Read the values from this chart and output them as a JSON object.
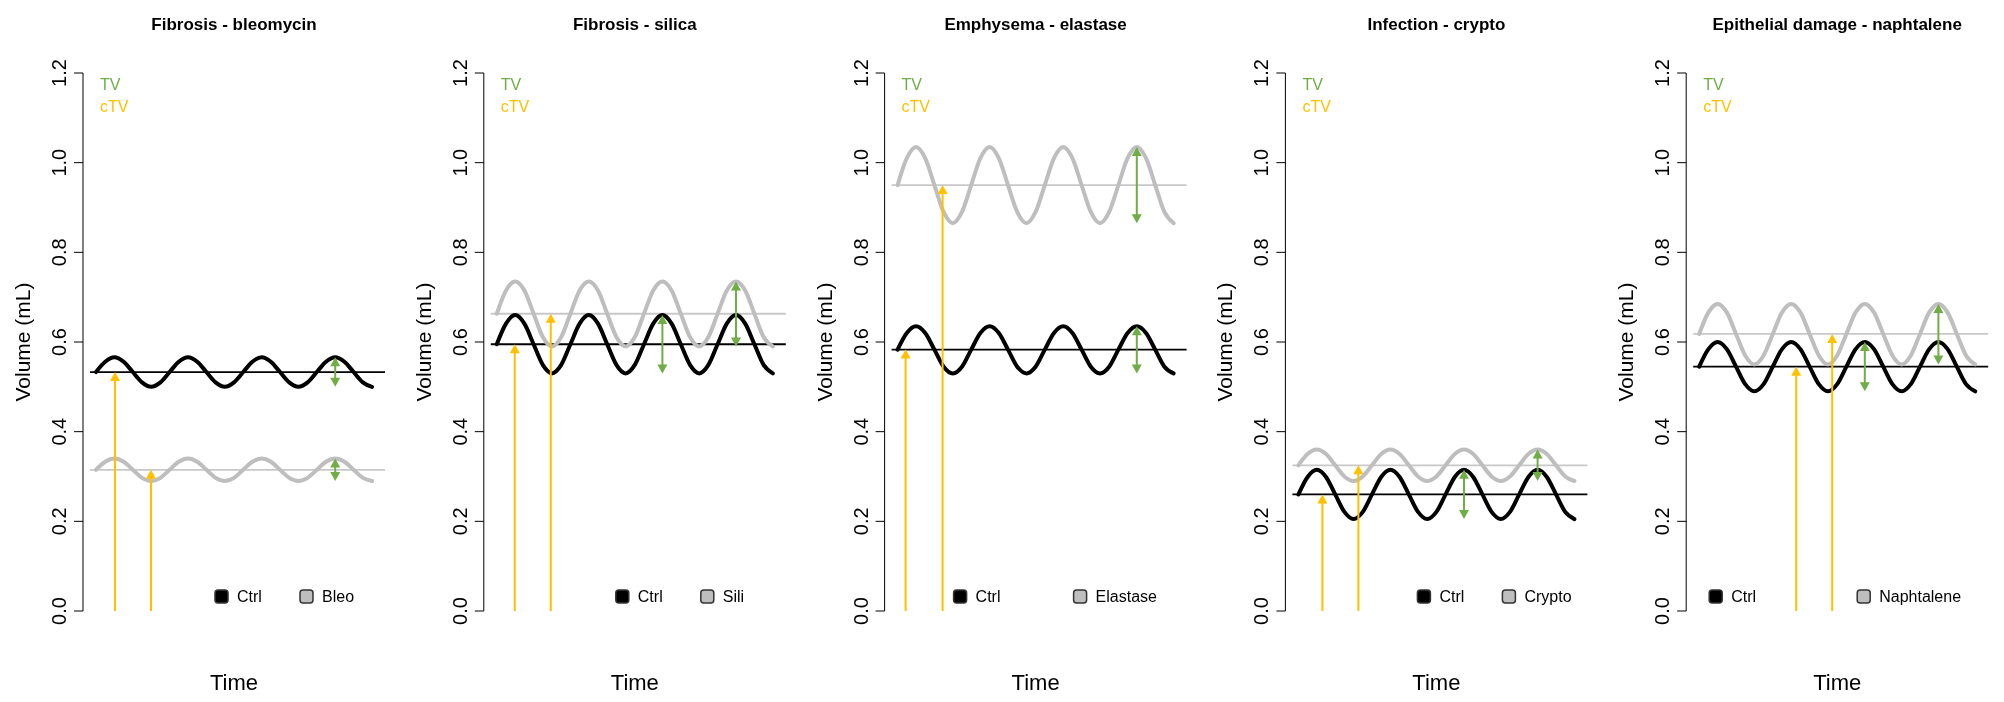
{
  "chart_data": [
    {
      "type": "line",
      "title": "Fibrosis - bleomycin",
      "xlabel": "Time",
      "ylabel": "Volume (mL)",
      "annotations": [
        "TV",
        "cTV"
      ],
      "legend": "bottom right",
      "tick_labels": "y",
      "ylim": [
        0,
        1.2
      ],
      "yticks": [
        {
          "value": 0,
          "label": "0.0"
        },
        {
          "value": 0.2,
          "label": "0.2"
        },
        {
          "value": 0.4,
          "label": "0.4"
        },
        {
          "value": 0.6,
          "label": "0.6"
        },
        {
          "value": 0.8,
          "label": "0.8"
        },
        {
          "value": 1,
          "label": "1.0"
        },
        {
          "value": 1.2,
          "label": "1.2"
        }
      ],
      "categories": [
        null,
        null,
        null,
        null,
        null,
        null,
        null,
        null,
        null,
        null,
        null,
        null,
        null,
        null,
        null,
        null,
        null,
        null,
        null,
        null,
        null,
        null,
        null,
        null,
        null,
        null,
        null,
        null,
        null,
        null,
        null
      ],
      "ref_lines": [
        {
          "axis": "y",
          "value": 0.533,
          "color": "#000000"
        },
        {
          "axis": "y",
          "value": 0.315,
          "color": "#c8c8c8"
        }
      ],
      "series": [
        {
          "name": "Ctrl",
          "color": "#000000",
          "values": [
            0.533,
            0.556,
            0.566,
            0.556,
            0.533,
            0.51,
            0.5,
            0.51,
            0.533,
            0.556,
            0.566,
            0.556,
            0.533,
            0.51,
            0.5,
            0.51,
            0.533,
            0.556,
            0.566,
            0.556,
            0.533,
            0.51,
            0.5,
            0.51,
            0.533,
            0.556,
            0.566,
            0.556,
            0.533,
            0.51,
            0.5
          ]
        },
        {
          "name": "Bleo",
          "color": "#bebebe",
          "values": [
            0.315,
            0.333,
            0.34,
            0.333,
            0.315,
            0.297,
            0.29,
            0.297,
            0.315,
            0.333,
            0.34,
            0.333,
            0.315,
            0.297,
            0.29,
            0.297,
            0.315,
            0.333,
            0.34,
            0.333,
            0.315,
            0.297,
            0.29,
            0.297,
            0.315,
            0.333,
            0.34,
            0.333,
            0.315,
            0.297,
            0.29
          ]
        }
      ]
    },
    {
      "type": "line",
      "title": "Fibrosis - silica",
      "xlabel": "Time",
      "ylabel": "Volume (mL)",
      "annotations": [
        "TV",
        "cTV"
      ],
      "legend": "bottom right",
      "tick_labels": "y",
      "ylim": [
        0,
        1.2
      ],
      "yticks": [
        {
          "value": 0,
          "label": "0.0"
        },
        {
          "value": 0.2,
          "label": "0.2"
        },
        {
          "value": 0.4,
          "label": "0.4"
        },
        {
          "value": 0.6,
          "label": "0.6"
        },
        {
          "value": 0.8,
          "label": "0.8"
        },
        {
          "value": 1,
          "label": "1.0"
        },
        {
          "value": 1.2,
          "label": "1.2"
        }
      ],
      "categories": [
        null,
        null,
        null,
        null,
        null,
        null,
        null,
        null,
        null,
        null,
        null,
        null,
        null,
        null,
        null,
        null,
        null,
        null,
        null,
        null,
        null,
        null,
        null,
        null,
        null,
        null,
        null,
        null,
        null,
        null,
        null
      ],
      "ref_lines": [
        {
          "axis": "y",
          "value": 0.595,
          "color": "#000000"
        },
        {
          "axis": "y",
          "value": 0.663,
          "color": "#c8c8c8"
        }
      ],
      "series": [
        {
          "name": "Ctrl",
          "color": "#000000",
          "values": [
            0.595,
            0.641,
            0.66,
            0.641,
            0.595,
            0.549,
            0.53,
            0.549,
            0.595,
            0.641,
            0.66,
            0.641,
            0.595,
            0.549,
            0.53,
            0.549,
            0.595,
            0.641,
            0.66,
            0.641,
            0.595,
            0.549,
            0.53,
            0.549,
            0.595,
            0.641,
            0.66,
            0.641,
            0.595,
            0.549,
            0.53
          ]
        },
        {
          "name": "Sili",
          "color": "#bebebe",
          "values": [
            0.663,
            0.715,
            0.735,
            0.715,
            0.663,
            0.611,
            0.59,
            0.611,
            0.663,
            0.715,
            0.735,
            0.715,
            0.663,
            0.611,
            0.59,
            0.611,
            0.663,
            0.715,
            0.735,
            0.715,
            0.663,
            0.611,
            0.59,
            0.611,
            0.663,
            0.715,
            0.735,
            0.715,
            0.663,
            0.611,
            0.59
          ]
        }
      ]
    },
    {
      "type": "line",
      "title": "Emphysema - elastase",
      "xlabel": "Time",
      "ylabel": "Volume (mL)",
      "annotations": [
        "TV",
        "cTV"
      ],
      "legend": "bottom",
      "tick_labels": "y",
      "ylim": [
        0,
        1.2
      ],
      "yticks": [
        {
          "value": 0,
          "label": "0.0"
        },
        {
          "value": 0.2,
          "label": "0.2"
        },
        {
          "value": 0.4,
          "label": "0.4"
        },
        {
          "value": 0.6,
          "label": "0.6"
        },
        {
          "value": 0.8,
          "label": "0.8"
        },
        {
          "value": 1,
          "label": "1.0"
        },
        {
          "value": 1.2,
          "label": "1.2"
        }
      ],
      "categories": [
        null,
        null,
        null,
        null,
        null,
        null,
        null,
        null,
        null,
        null,
        null,
        null,
        null,
        null,
        null,
        null,
        null,
        null,
        null,
        null,
        null,
        null,
        null,
        null,
        null,
        null,
        null,
        null,
        null,
        null,
        null
      ],
      "ref_lines": [
        {
          "axis": "y",
          "value": 0.583,
          "color": "#000000"
        },
        {
          "axis": "y",
          "value": 0.95,
          "color": "#c8c8c8"
        }
      ],
      "series": [
        {
          "name": "Ctrl",
          "color": "#000000",
          "values": [
            0.583,
            0.62,
            0.635,
            0.62,
            0.583,
            0.545,
            0.53,
            0.545,
            0.583,
            0.62,
            0.635,
            0.62,
            0.583,
            0.545,
            0.53,
            0.545,
            0.583,
            0.62,
            0.635,
            0.62,
            0.583,
            0.545,
            0.53,
            0.545,
            0.583,
            0.62,
            0.635,
            0.62,
            0.583,
            0.545,
            0.53
          ]
        },
        {
          "name": "Elastase",
          "color": "#bebebe",
          "values": [
            0.95,
            1.01,
            1.035,
            1.01,
            0.95,
            0.89,
            0.865,
            0.89,
            0.95,
            1.01,
            1.035,
            1.01,
            0.95,
            0.89,
            0.865,
            0.89,
            0.95,
            1.01,
            1.035,
            1.01,
            0.95,
            0.89,
            0.865,
            0.89,
            0.95,
            1.01,
            1.035,
            1.01,
            0.95,
            0.89,
            0.865
          ]
        }
      ]
    },
    {
      "type": "line",
      "title": "Infection - crypto",
      "xlabel": "Time",
      "ylabel": "Volume (mL)",
      "annotations": [
        "TV",
        "cTV"
      ],
      "legend": "bottom right",
      "tick_labels": "y",
      "ylim": [
        0,
        1.2
      ],
      "yticks": [
        {
          "value": 0,
          "label": "0.0"
        },
        {
          "value": 0.2,
          "label": "0.2"
        },
        {
          "value": 0.4,
          "label": "0.4"
        },
        {
          "value": 0.6,
          "label": "0.6"
        },
        {
          "value": 0.8,
          "label": "0.8"
        },
        {
          "value": 1,
          "label": "1.0"
        },
        {
          "value": 1.2,
          "label": "1.2"
        }
      ],
      "categories": [
        null,
        null,
        null,
        null,
        null,
        null,
        null,
        null,
        null,
        null,
        null,
        null,
        null,
        null,
        null,
        null,
        null,
        null,
        null,
        null,
        null,
        null,
        null,
        null,
        null,
        null,
        null,
        null,
        null,
        null,
        null
      ],
      "ref_lines": [
        {
          "axis": "y",
          "value": 0.26,
          "color": "#000000"
        },
        {
          "axis": "y",
          "value": 0.325,
          "color": "#c8c8c8"
        }
      ],
      "series": [
        {
          "name": "Ctrl",
          "color": "#000000",
          "values": [
            0.26,
            0.299,
            0.315,
            0.299,
            0.26,
            0.221,
            0.205,
            0.221,
            0.26,
            0.299,
            0.315,
            0.299,
            0.26,
            0.221,
            0.205,
            0.221,
            0.26,
            0.299,
            0.315,
            0.299,
            0.26,
            0.221,
            0.205,
            0.221,
            0.26,
            0.299,
            0.315,
            0.299,
            0.26,
            0.221,
            0.205
          ]
        },
        {
          "name": "Crypto",
          "color": "#bebebe",
          "values": [
            0.325,
            0.35,
            0.36,
            0.35,
            0.325,
            0.3,
            0.29,
            0.3,
            0.325,
            0.35,
            0.36,
            0.35,
            0.325,
            0.3,
            0.29,
            0.3,
            0.325,
            0.35,
            0.36,
            0.35,
            0.325,
            0.3,
            0.29,
            0.3,
            0.325,
            0.35,
            0.36,
            0.35,
            0.325,
            0.3,
            0.29
          ]
        }
      ]
    },
    {
      "type": "line",
      "title": "Epithelial damage - naphtalene",
      "xlabel": "Time",
      "ylabel": "Volume (mL)",
      "annotations": [
        "TV",
        "cTV"
      ],
      "legend": "bottom left",
      "tick_labels": "y",
      "ylim": [
        0,
        1.2
      ],
      "yticks": [
        {
          "value": 0,
          "label": "0.0"
        },
        {
          "value": 0.2,
          "label": "0.2"
        },
        {
          "value": 0.4,
          "label": "0.4"
        },
        {
          "value": 0.6,
          "label": "0.6"
        },
        {
          "value": 0.8,
          "label": "0.8"
        },
        {
          "value": 1,
          "label": "1.0"
        },
        {
          "value": 1.2,
          "label": "1.2"
        }
      ],
      "categories": [
        null,
        null,
        null,
        null,
        null,
        null,
        null,
        null,
        null,
        null,
        null,
        null,
        null,
        null,
        null,
        null,
        null,
        null,
        null,
        null,
        null,
        null,
        null,
        null,
        null,
        null,
        null,
        null,
        null,
        null,
        null
      ],
      "ref_lines": [
        {
          "axis": "y",
          "value": 0.545,
          "color": "#000000"
        },
        {
          "axis": "y",
          "value": 0.618,
          "color": "#c8c8c8"
        }
      ],
      "series": [
        {
          "name": "Ctrl",
          "color": "#000000",
          "values": [
            0.545,
            0.584,
            0.6,
            0.584,
            0.545,
            0.506,
            0.49,
            0.506,
            0.545,
            0.584,
            0.6,
            0.584,
            0.545,
            0.506,
            0.49,
            0.506,
            0.545,
            0.584,
            0.6,
            0.584,
            0.545,
            0.506,
            0.49,
            0.506,
            0.545,
            0.584,
            0.6,
            0.584,
            0.545,
            0.506,
            0.49
          ]
        },
        {
          "name": "Naphtalene",
          "color": "#bebebe",
          "values": [
            0.618,
            0.666,
            0.685,
            0.666,
            0.618,
            0.57,
            0.55,
            0.57,
            0.618,
            0.666,
            0.685,
            0.666,
            0.618,
            0.57,
            0.55,
            0.57,
            0.618,
            0.666,
            0.685,
            0.666,
            0.618,
            0.57,
            0.55,
            0.57,
            0.618,
            0.666,
            0.685,
            0.666,
            0.618,
            0.57,
            0.55
          ]
        }
      ]
    }
  ]
}
